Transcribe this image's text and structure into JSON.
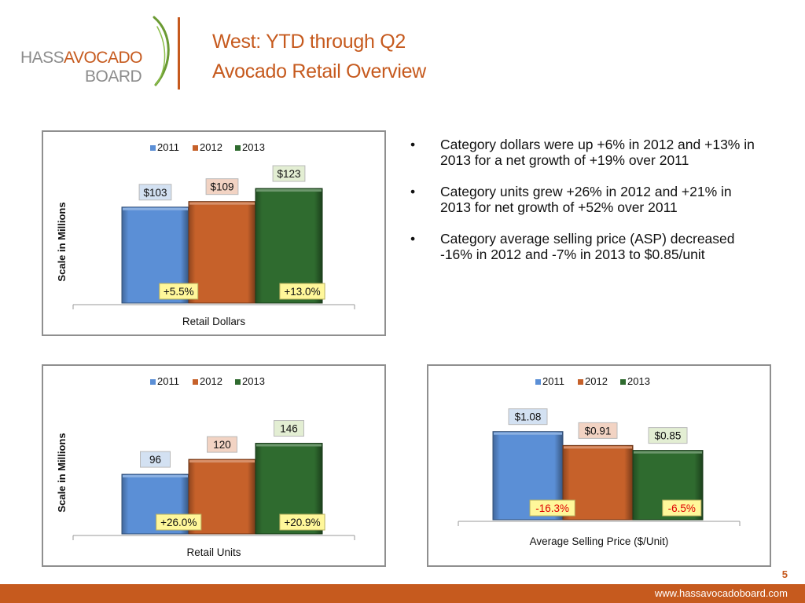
{
  "logo": {
    "line1a": "HASS",
    "line1b": "AVOCADO",
    "line2": "BOARD"
  },
  "title": {
    "line1": "West: YTD through Q2",
    "line2": "Avocado Retail Overview"
  },
  "bullets": [
    "Category dollars were up +6% in 2012 and +13% in 2013 for a net growth of +19% over 2011",
    "Category units grew +26% in 2012 and +21% in 2013 for net growth of +52% over 2011",
    "Category average selling price (ASP) decreased -16% in 2012 and -7% in 2013 to $0.85/unit"
  ],
  "colors": {
    "2011": "#5b8fd6",
    "2012": "#c6612a",
    "2013": "#2f6b2f",
    "accent": "#c65a1e"
  },
  "chart_data": [
    {
      "type": "bar",
      "xlabel": "Retail Dollars",
      "ylabel": "Scale in Millions",
      "series": [
        {
          "name": "2011",
          "values": [
            103
          ],
          "label": "$103",
          "label_bg": "#d3e1f2"
        },
        {
          "name": "2012",
          "values": [
            109
          ],
          "label": "$109",
          "label_bg": "#f2d3c3"
        },
        {
          "name": "2013",
          "values": [
            123
          ],
          "label": "$123",
          "label_bg": "#e3eed3"
        }
      ],
      "change_labels": [
        "+5.5%",
        "+13.0%"
      ],
      "change_label_color": "#111111",
      "legend_position": "top-center",
      "ylim": [
        0,
        150
      ],
      "grid": false
    },
    {
      "type": "bar",
      "xlabel": "Retail Units",
      "ylabel": "Scale in Millions",
      "series": [
        {
          "name": "2011",
          "values": [
            96
          ],
          "label": "96",
          "label_bg": "#d3e1f2"
        },
        {
          "name": "2012",
          "values": [
            120
          ],
          "label": "120",
          "label_bg": "#f2d3c3"
        },
        {
          "name": "2013",
          "values": [
            146
          ],
          "label": "146",
          "label_bg": "#e3eed3"
        }
      ],
      "change_labels": [
        "+26.0%",
        "+20.9%"
      ],
      "change_label_color": "#111111",
      "legend_position": "top-center",
      "ylim": [
        0,
        220
      ],
      "grid": false
    },
    {
      "type": "bar",
      "xlabel": "Average Selling Price ($/Unit)",
      "ylabel": "",
      "series": [
        {
          "name": "2011",
          "values": [
            1.08
          ],
          "label": "$1.08",
          "label_bg": "#d3e1f2"
        },
        {
          "name": "2012",
          "values": [
            0.91
          ],
          "label": "$0.91",
          "label_bg": "#f2d3c3"
        },
        {
          "name": "2013",
          "values": [
            0.85
          ],
          "label": "$0.85",
          "label_bg": "#e3eed3"
        }
      ],
      "change_labels": [
        "-16.3%",
        "-6.5%"
      ],
      "change_label_color": "#e00000",
      "legend_position": "top-center",
      "ylim": [
        0,
        1.5
      ],
      "grid": false
    }
  ],
  "footer": {
    "page_number": "5",
    "url": "www.hassavocadoboard.com"
  }
}
